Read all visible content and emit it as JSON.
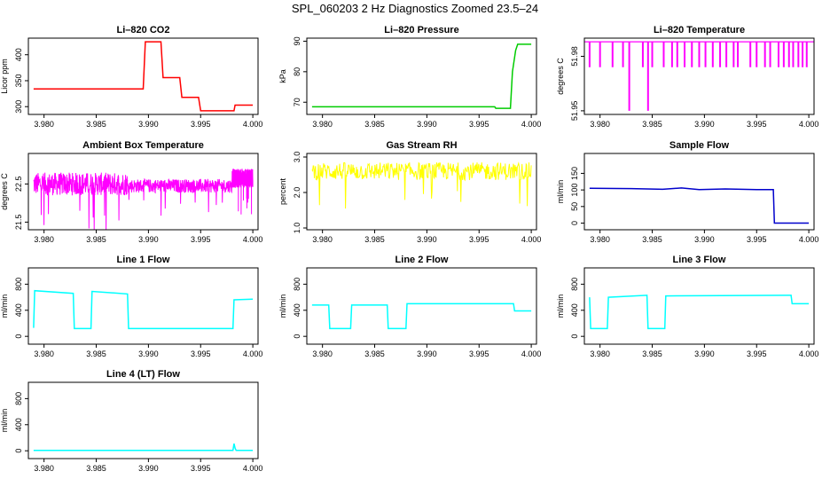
{
  "title": "SPL_060203  2 Hz Diagnostics Zoomed 23.5–24",
  "colors": {
    "co2": "#ff0000",
    "pressure": "#00cc00",
    "temperature": "#ff00ff",
    "box_temp": "#ff00ff",
    "rh": "#ffff00",
    "sample_flow": "#0000cc",
    "line_flow": "#00ffff"
  },
  "chart_data": [
    {
      "type": "line",
      "title": "Li–820 CO2",
      "ylabel": "Licor ppm",
      "xlim": [
        3.9785,
        4.0005
      ],
      "ylim": [
        285,
        432
      ],
      "xticks": [
        3.98,
        3.985,
        3.99,
        3.995,
        4.0
      ],
      "xtick_labels": [
        "3.980",
        "3.985",
        "3.990",
        "3.995",
        "4.000"
      ],
      "yticks": [
        300,
        350,
        400
      ],
      "ytick_labels": [
        "300",
        "350",
        "400"
      ],
      "color": "#ff0000",
      "x": [
        3.979,
        3.9895,
        3.9897,
        3.9912,
        3.9914,
        3.993,
        3.9932,
        3.9948,
        3.995,
        3.9982,
        3.9983,
        4.0
      ],
      "y": [
        334,
        334,
        425,
        425,
        356,
        356,
        318,
        318,
        292,
        292,
        303,
        303
      ]
    },
    {
      "type": "line",
      "title": "Li–820 Pressure",
      "ylabel": "kPa",
      "xlim": [
        3.9785,
        4.0005
      ],
      "ylim": [
        66,
        91
      ],
      "xticks": [
        3.98,
        3.985,
        3.99,
        3.995,
        4.0
      ],
      "xtick_labels": [
        "3.980",
        "3.985",
        "3.990",
        "3.995",
        "4.000"
      ],
      "yticks": [
        70,
        80,
        90
      ],
      "ytick_labels": [
        "70",
        "80",
        "90"
      ],
      "color": "#00cc00",
      "x": [
        3.979,
        3.9965,
        3.9966,
        3.998,
        3.9982,
        3.9985,
        3.9987,
        4.0
      ],
      "y": [
        68.5,
        68.5,
        68.0,
        68.0,
        80,
        87,
        89,
        89
      ]
    },
    {
      "type": "line",
      "title": "Li–820 Temperature",
      "ylabel": "degrees C",
      "xlim": [
        3.9785,
        4.0005
      ],
      "ylim": [
        51.948,
        51.99
      ],
      "xticks": [
        3.98,
        3.985,
        3.99,
        3.995,
        4.0
      ],
      "xtick_labels": [
        "3.980",
        "3.985",
        "3.990",
        "3.995",
        "4.000"
      ],
      "yticks": [
        51.95,
        51.98
      ],
      "ytick_labels": [
        "51.95",
        "51.98"
      ],
      "color": "#ff00ff",
      "base": 51.988,
      "drops_x": [
        3.979,
        3.98,
        3.9812,
        3.9822,
        3.9828,
        3.9841,
        3.9846,
        3.985,
        3.9861,
        3.9869,
        3.9874,
        3.9881,
        3.9888,
        3.9895,
        3.9901,
        3.9908,
        3.9915,
        3.9921,
        3.9928,
        3.9932,
        3.9944,
        3.995,
        3.9958,
        3.9963,
        3.9971,
        3.9976,
        3.9981,
        3.9985,
        3.999,
        3.9994,
        3.9998
      ],
      "drops_y": [
        51.974,
        51.974,
        51.974,
        51.974,
        51.95,
        51.974,
        51.95,
        51.974,
        51.974,
        51.974,
        51.974,
        51.974,
        51.974,
        51.974,
        51.974,
        51.974,
        51.974,
        51.974,
        51.974,
        51.974,
        51.974,
        51.974,
        51.974,
        51.974,
        51.974,
        51.974,
        51.974,
        51.974,
        51.974,
        51.974,
        51.974
      ]
    },
    {
      "type": "line",
      "title": "Ambient Box Temperature",
      "ylabel": "degrees C",
      "xlim": [
        3.9785,
        4.0005
      ],
      "ylim": [
        21.3,
        23.3
      ],
      "xticks": [
        3.98,
        3.985,
        3.99,
        3.995,
        4.0
      ],
      "xtick_labels": [
        "3.980",
        "3.985",
        "3.990",
        "3.995",
        "4.000"
      ],
      "yticks": [
        21.5,
        22.5
      ],
      "ytick_labels": [
        "21.5",
        "22.5"
      ],
      "color": "#ff00ff",
      "segments": [
        {
          "x0": 3.979,
          "x1": 3.988,
          "mid": 22.5,
          "amp": 0.3
        },
        {
          "x0": 3.988,
          "x1": 3.998,
          "mid": 22.45,
          "amp": 0.18
        },
        {
          "x0": 3.998,
          "x1": 4.0,
          "mid": 22.65,
          "amp": 0.25
        }
      ]
    },
    {
      "type": "line",
      "title": "Gas Stream RH",
      "ylabel": "percent",
      "xlim": [
        3.9785,
        4.0005
      ],
      "ylim": [
        0.95,
        3.1
      ],
      "xticks": [
        3.98,
        3.985,
        3.99,
        3.995,
        4.0
      ],
      "xtick_labels": [
        "3.980",
        "3.985",
        "3.990",
        "3.995",
        "4.000"
      ],
      "yticks": [
        1.0,
        2.0,
        3.0
      ],
      "ytick_labels": [
        "1.0",
        "2.0",
        "3.0"
      ],
      "color": "#ffff00",
      "segments": [
        {
          "x0": 3.979,
          "x1": 4.0,
          "mid": 2.6,
          "amp": 0.25
        }
      ]
    },
    {
      "type": "line",
      "title": "Sample Flow",
      "ylabel": "ml/min",
      "xlim": [
        3.9785,
        4.0005
      ],
      "ylim": [
        -20,
        210
      ],
      "xticks": [
        3.98,
        3.985,
        3.99,
        3.995,
        4.0
      ],
      "xtick_labels": [
        "3.980",
        "3.985",
        "3.990",
        "3.995",
        "4.000"
      ],
      "yticks": [
        0,
        50,
        100,
        150
      ],
      "ytick_labels": [
        "0",
        "50",
        "100",
        "150"
      ],
      "color": "#0000cc",
      "x": [
        3.979,
        3.983,
        3.986,
        3.9878,
        3.9895,
        3.992,
        3.995,
        3.9966,
        3.9967,
        4.0
      ],
      "y": [
        105,
        104,
        102,
        106,
        101,
        103,
        101,
        101,
        0,
        0
      ]
    },
    {
      "type": "line",
      "title": "Line 1 Flow",
      "ylabel": "ml/min",
      "xlim": [
        3.9785,
        4.0005
      ],
      "ylim": [
        -120,
        1050
      ],
      "xticks": [
        3.98,
        3.985,
        3.99,
        3.995,
        4.0
      ],
      "xtick_labels": [
        "3.980",
        "3.985",
        "3.990",
        "3.995",
        "4.000"
      ],
      "yticks": [
        0,
        400,
        800
      ],
      "ytick_labels": [
        "0",
        "400",
        "800"
      ],
      "color": "#00ffff",
      "x": [
        3.979,
        3.9791,
        3.9828,
        3.9829,
        3.9845,
        3.9846,
        3.988,
        3.9881,
        3.9981,
        3.9982,
        4.0
      ],
      "y": [
        130,
        700,
        660,
        120,
        120,
        690,
        650,
        120,
        120,
        560,
        570
      ]
    },
    {
      "type": "line",
      "title": "Line 2 Flow",
      "ylabel": "ml/min",
      "xlim": [
        3.9785,
        4.0005
      ],
      "ylim": [
        -120,
        1050
      ],
      "xticks": [
        3.98,
        3.985,
        3.99,
        3.995,
        4.0
      ],
      "xtick_labels": [
        "3.980",
        "3.985",
        "3.990",
        "3.995",
        "4.000"
      ],
      "yticks": [
        0,
        400,
        800
      ],
      "ytick_labels": [
        "0",
        "400",
        "800"
      ],
      "color": "#00ffff",
      "x": [
        3.979,
        3.9806,
        3.9807,
        3.9827,
        3.9828,
        3.9862,
        3.9863,
        3.988,
        3.9881,
        3.9983,
        3.9984,
        4.0
      ],
      "y": [
        480,
        480,
        120,
        120,
        480,
        480,
        120,
        120,
        500,
        500,
        390,
        390
      ]
    },
    {
      "type": "line",
      "title": "Line 3 Flow",
      "ylabel": "ml/min",
      "xlim": [
        3.9785,
        4.0005
      ],
      "ylim": [
        -120,
        1050
      ],
      "xticks": [
        3.98,
        3.985,
        3.99,
        3.995,
        4.0
      ],
      "xtick_labels": [
        "3.980",
        "3.985",
        "3.990",
        "3.995",
        "4.000"
      ],
      "yticks": [
        0,
        400,
        800
      ],
      "ytick_labels": [
        "0",
        "400",
        "800"
      ],
      "color": "#00ffff",
      "x": [
        3.979,
        3.9791,
        3.9792,
        3.9807,
        3.9808,
        3.9845,
        3.9846,
        3.9862,
        3.9863,
        3.9983,
        3.9984,
        4.0
      ],
      "y": [
        600,
        120,
        120,
        120,
        600,
        630,
        120,
        120,
        620,
        630,
        500,
        500
      ]
    },
    {
      "type": "line",
      "title": "Line 4 (LT) Flow",
      "ylabel": "ml/min",
      "xlim": [
        3.9785,
        4.0005
      ],
      "ylim": [
        -120,
        1050
      ],
      "xticks": [
        3.98,
        3.985,
        3.99,
        3.995,
        4.0
      ],
      "xtick_labels": [
        "3.980",
        "3.985",
        "3.990",
        "3.995",
        "4.000"
      ],
      "yticks": [
        0,
        400,
        800
      ],
      "ytick_labels": [
        "0",
        "400",
        "800"
      ],
      "color": "#00ffff",
      "x": [
        3.979,
        3.9981,
        3.9982,
        3.9983,
        3.9984,
        4.0
      ],
      "y": [
        5,
        5,
        110,
        40,
        5,
        5
      ]
    }
  ]
}
